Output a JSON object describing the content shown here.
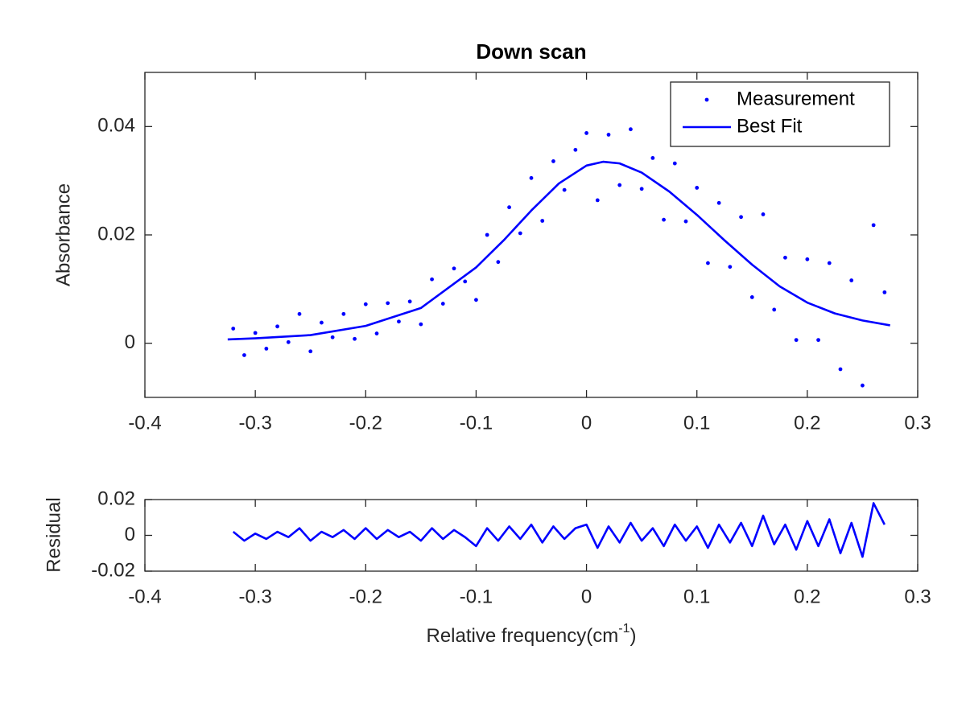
{
  "chart_data": [
    {
      "type": "scatter",
      "title": "Down scan",
      "ylabel": "Absorbance",
      "xlim": [
        -0.4,
        0.3
      ],
      "xticks": [
        -0.4,
        -0.3,
        -0.2,
        -0.1,
        0,
        0.1,
        0.2,
        0.3
      ],
      "ylim": [
        -0.01,
        0.05
      ],
      "yticks": [
        0,
        0.02,
        0.04
      ],
      "legend": "northeast",
      "series": [
        {
          "name": "Measurement",
          "style": "markers",
          "color": "#0000ff",
          "x": [
            -0.32,
            -0.31,
            -0.3,
            -0.29,
            -0.28,
            -0.27,
            -0.26,
            -0.25,
            -0.24,
            -0.23,
            -0.22,
            -0.21,
            -0.2,
            -0.19,
            -0.18,
            -0.17,
            -0.16,
            -0.15,
            -0.14,
            -0.13,
            -0.12,
            -0.11,
            -0.1,
            -0.09,
            -0.08,
            -0.07,
            -0.06,
            -0.05,
            -0.04,
            -0.03,
            -0.02,
            -0.01,
            0,
            0.01,
            0.02,
            0.03,
            0.04,
            0.05,
            0.06,
            0.07,
            0.08,
            0.09,
            0.1,
            0.11,
            0.12,
            0.13,
            0.14,
            0.15,
            0.16,
            0.17,
            0.18,
            0.19,
            0.2,
            0.21,
            0.22,
            0.23,
            0.24,
            0.25,
            0.26,
            0.27
          ],
          "values": [
            0.0027,
            -0.0022,
            0.0019,
            -0.001,
            0.0031,
            0.0002,
            0.0054,
            -0.0015,
            0.0038,
            0.0011,
            0.0054,
            0.0008,
            0.0072,
            0.0018,
            0.0074,
            0.004,
            0.0077,
            0.0035,
            0.0118,
            0.0073,
            0.0138,
            0.0114,
            0.008,
            0.02,
            0.015,
            0.0251,
            0.0203,
            0.0305,
            0.0226,
            0.0336,
            0.0283,
            0.0357,
            0.0388,
            0.0264,
            0.0385,
            0.0292,
            0.0395,
            0.0285,
            0.0342,
            0.0228,
            0.0332,
            0.0225,
            0.0287,
            0.0148,
            0.0259,
            0.0141,
            0.0233,
            0.0085,
            0.0238,
            0.0062,
            0.0158,
            0.0006,
            0.0155,
            0.0006,
            0.0148,
            -0.0048,
            0.0116,
            -0.0078,
            0.0218,
            0.0094
          ]
        },
        {
          "name": "Best Fit",
          "style": "line",
          "color": "#0000ff",
          "x": [
            -0.325,
            -0.3,
            -0.25,
            -0.2,
            -0.15,
            -0.1,
            -0.075,
            -0.05,
            -0.025,
            0,
            0.015,
            0.03,
            0.05,
            0.075,
            0.1,
            0.125,
            0.15,
            0.175,
            0.2,
            0.225,
            0.25,
            0.275
          ],
          "values": [
            0.0007,
            0.0009,
            0.0015,
            0.0032,
            0.0065,
            0.014,
            0.019,
            0.0245,
            0.0295,
            0.0328,
            0.0335,
            0.0332,
            0.0315,
            0.028,
            0.0237,
            0.019,
            0.0145,
            0.0105,
            0.0075,
            0.0055,
            0.0042,
            0.0033
          ]
        }
      ]
    },
    {
      "type": "line",
      "ylabel": "Residual",
      "xlabel": "Relative frequency(cm",
      "xlabel_superscript": "-1",
      "xlabel_suffix": ")",
      "xlim": [
        -0.4,
        0.3
      ],
      "xticks": [
        -0.4,
        -0.3,
        -0.2,
        -0.1,
        0,
        0.1,
        0.2,
        0.3
      ],
      "ylim": [
        -0.02,
        0.02
      ],
      "yticks": [
        -0.02,
        0,
        0.02
      ],
      "series": [
        {
          "style": "line",
          "color": "#0000ff",
          "x": [
            -0.32,
            -0.31,
            -0.3,
            -0.29,
            -0.28,
            -0.27,
            -0.26,
            -0.25,
            -0.24,
            -0.23,
            -0.22,
            -0.21,
            -0.2,
            -0.19,
            -0.18,
            -0.17,
            -0.16,
            -0.15,
            -0.14,
            -0.13,
            -0.12,
            -0.11,
            -0.1,
            -0.09,
            -0.08,
            -0.07,
            -0.06,
            -0.05,
            -0.04,
            -0.03,
            -0.02,
            -0.01,
            0,
            0.01,
            0.02,
            0.03,
            0.04,
            0.05,
            0.06,
            0.07,
            0.08,
            0.09,
            0.1,
            0.11,
            0.12,
            0.13,
            0.14,
            0.15,
            0.16,
            0.17,
            0.18,
            0.19,
            0.2,
            0.21,
            0.22,
            0.23,
            0.24,
            0.25,
            0.26,
            0.27
          ],
          "values": [
            0.002,
            -0.003,
            0.001,
            -0.002,
            0.002,
            -0.001,
            0.004,
            -0.003,
            0.002,
            -0.001,
            0.003,
            -0.002,
            0.004,
            -0.002,
            0.003,
            -0.001,
            0.002,
            -0.003,
            0.004,
            -0.002,
            0.003,
            -0.001,
            -0.006,
            0.004,
            -0.003,
            0.005,
            -0.002,
            0.006,
            -0.004,
            0.005,
            -0.002,
            0.004,
            0.006,
            -0.007,
            0.005,
            -0.004,
            0.007,
            -0.003,
            0.004,
            -0.006,
            0.006,
            -0.003,
            0.005,
            -0.007,
            0.006,
            -0.004,
            0.007,
            -0.006,
            0.011,
            -0.005,
            0.006,
            -0.008,
            0.008,
            -0.006,
            0.009,
            -0.01,
            0.007,
            -0.012,
            0.018,
            0.006
          ]
        }
      ]
    }
  ]
}
